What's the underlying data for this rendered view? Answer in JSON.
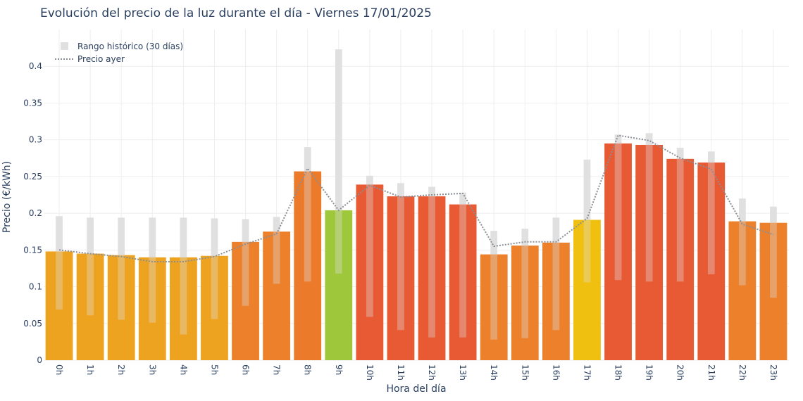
{
  "chart_data": {
    "type": "bar",
    "title": "Evolución del precio de la luz durante el día - Viernes 17/01/2025",
    "xlabel": "Hora del día",
    "ylabel": "Precio (€/kWh)",
    "ylim": [
      0,
      0.45
    ],
    "yticks": [
      "0",
      "0.05",
      "0.1",
      "0.15",
      "0.2",
      "0.25",
      "0.3",
      "0.35",
      "0.4"
    ],
    "categories": [
      "0h",
      "1h",
      "2h",
      "3h",
      "4h",
      "5h",
      "6h",
      "7h",
      "8h",
      "9h",
      "10h",
      "11h",
      "12h",
      "13h",
      "14h",
      "15h",
      "16h",
      "17h",
      "18h",
      "19h",
      "20h",
      "21h",
      "22h",
      "23h"
    ],
    "values": [
      0.148,
      0.145,
      0.143,
      0.14,
      0.14,
      0.142,
      0.161,
      0.175,
      0.257,
      0.204,
      0.239,
      0.223,
      0.223,
      0.212,
      0.144,
      0.156,
      0.16,
      0.191,
      0.295,
      0.293,
      0.274,
      0.269,
      0.189,
      0.187
    ],
    "bar_colors": [
      "#eea320",
      "#eea320",
      "#eea320",
      "#eea320",
      "#eea320",
      "#eea320",
      "#ec802b",
      "#ec802b",
      "#ec7a2b",
      "#9ec73b",
      "#e85a33",
      "#e85a33",
      "#e85a33",
      "#e85a33",
      "#ec802b",
      "#ec802b",
      "#ec802b",
      "#f0c010",
      "#e85a33",
      "#e85a33",
      "#e85a33",
      "#e85a33",
      "#ec802b",
      "#ec802b"
    ],
    "range_series": {
      "name": "Rango histórico (30 días)",
      "low": [
        0.069,
        0.061,
        0.055,
        0.051,
        0.035,
        0.056,
        0.074,
        0.104,
        0.107,
        0.118,
        0.059,
        0.041,
        0.031,
        0.031,
        0.028,
        0.03,
        0.041,
        0.106,
        0.109,
        0.107,
        0.107,
        0.117,
        0.102,
        0.085
      ],
      "high": [
        0.196,
        0.194,
        0.194,
        0.194,
        0.194,
        0.193,
        0.192,
        0.195,
        0.29,
        0.423,
        0.251,
        0.241,
        0.236,
        0.228,
        0.176,
        0.179,
        0.194,
        0.273,
        0.307,
        0.309,
        0.289,
        0.284,
        0.22,
        0.209
      ],
      "color": "#e0e0e0"
    },
    "line_series": {
      "name": "Precio ayer",
      "values": [
        0.15,
        0.145,
        0.141,
        0.134,
        0.134,
        0.141,
        0.158,
        0.172,
        0.261,
        0.204,
        0.238,
        0.222,
        0.225,
        0.227,
        0.155,
        0.161,
        0.161,
        0.193,
        0.306,
        0.299,
        0.275,
        0.26,
        0.185,
        0.171
      ],
      "color": "#8a8f96"
    },
    "grid": true,
    "legend_position": "top-left"
  }
}
